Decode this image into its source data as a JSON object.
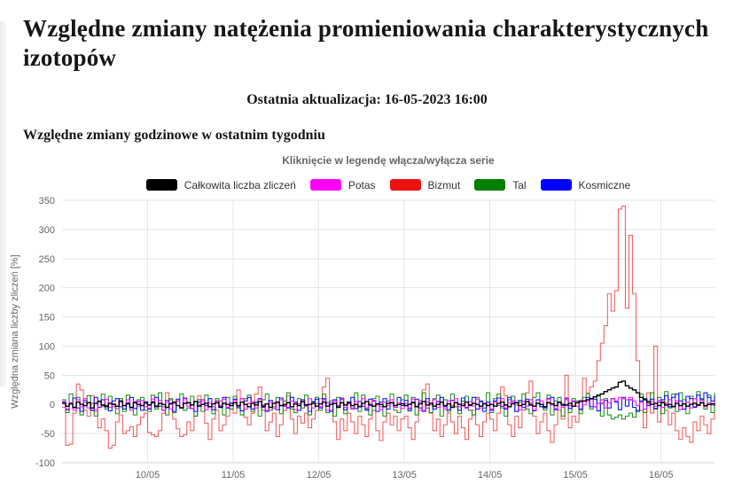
{
  "page": {
    "title": "Względne zmiany natężenia promieniowania charakterystycznych izotopów",
    "last_update": "Ostatnia aktualizacja: 16-05-2023 16:00",
    "section_heading": "Względne zmiany godzinowe w ostatnim tygodniu"
  },
  "chart_data": {
    "type": "line",
    "step": true,
    "title": "Kliknięcie w legendę włącza/wyłącza serie",
    "ylabel": "Względna zmiana liczby zliczeń [%]",
    "ylim": [
      -100,
      350
    ],
    "y_ticks": [
      350,
      300,
      250,
      200,
      150,
      100,
      50,
      0,
      -50,
      -100
    ],
    "x_ticks": [
      "10/05",
      "11/05",
      "12/05",
      "13/05",
      "14/05",
      "15/05",
      "16/05"
    ],
    "x_tick_indices": [
      24,
      48,
      72,
      96,
      120,
      144,
      168
    ],
    "x_start": "09/05 00:00",
    "x_step_hours": 1,
    "grid": true,
    "legend_position": "top",
    "grid_color": "#e6e6e6",
    "axis_line_color": "#d0d0d0",
    "series": [
      {
        "name": "Całkowita liczba zliczeń",
        "slug": "total",
        "color": "#000000",
        "opacity": 1,
        "width": 1.4,
        "values": [
          2,
          -3,
          1,
          -5,
          4,
          0,
          -2,
          3,
          -6,
          2,
          5,
          -1,
          -4,
          2,
          0,
          -3,
          6,
          -2,
          1,
          -5,
          3,
          0,
          -2,
          4,
          -1,
          3,
          -4,
          2,
          0,
          -5,
          1,
          4,
          -2,
          -6,
          2,
          3,
          -1,
          5,
          -3,
          0,
          2,
          -4,
          1,
          3,
          -5,
          2,
          0,
          -2,
          3,
          -2,
          4,
          0,
          -4,
          2,
          -1,
          5,
          -3,
          1,
          -5,
          2,
          4,
          -2,
          0,
          3,
          -4,
          1,
          -2,
          5,
          -1,
          0,
          2,
          -3,
          1,
          4,
          -3,
          0,
          2,
          -5,
          3,
          -1,
          4,
          -2,
          0,
          -4,
          2,
          5,
          -1,
          -3,
          1,
          0,
          -4,
          2,
          3,
          -2,
          0,
          1,
          -2,
          0,
          3,
          -4,
          1,
          5,
          -1,
          2,
          -3,
          0,
          4,
          -2,
          1,
          -5,
          3,
          0,
          -2,
          4,
          -1,
          2,
          0,
          -3,
          1,
          -2,
          0,
          -3,
          2,
          4,
          -1,
          -4,
          1,
          3,
          -2,
          0,
          5,
          -1,
          -3,
          2,
          0,
          -4,
          3,
          1,
          -2,
          4,
          0,
          -1,
          2,
          -3,
          3,
          5,
          6,
          8,
          10,
          13,
          16,
          18,
          22,
          25,
          28,
          30,
          38,
          40,
          32,
          28,
          25,
          20,
          12,
          8,
          4,
          0,
          2,
          -2,
          3,
          -1,
          0,
          -4,
          2,
          -2,
          1,
          -3,
          0,
          2,
          -1,
          3,
          -2,
          0,
          1,
          -2
        ]
      },
      {
        "name": "Potas",
        "slug": "potas",
        "color": "#ff00ff",
        "opacity": 0.9,
        "width": 1.1,
        "values": [
          5,
          -8,
          3,
          -10,
          8,
          -4,
          10,
          -6,
          2,
          -9,
          6,
          -3,
          9,
          -5,
          1,
          -7,
          4,
          -2,
          8,
          -10,
          5,
          -3,
          7,
          -4,
          -6,
          9,
          -2,
          7,
          -10,
          4,
          -8,
          2,
          6,
          -5,
          10,
          -3,
          -7,
          5,
          -1,
          8,
          -9,
          3,
          -4,
          6,
          -2,
          9,
          -5,
          1,
          7,
          -3,
          10,
          -8,
          2,
          5,
          -6,
          9,
          -1,
          -10,
          4,
          -7,
          3,
          8,
          -2,
          -5,
          6,
          -9,
          1,
          4,
          -3,
          10,
          -6,
          2,
          -4,
          8,
          -10,
          3,
          6,
          -2,
          9,
          -5,
          1,
          -8,
          5,
          -3,
          10,
          -6,
          2,
          7,
          -1,
          -9,
          4,
          -2,
          8,
          -5,
          3,
          -7,
          2,
          -6,
          9,
          -3,
          7,
          -10,
          4,
          -1,
          8,
          -5,
          3,
          -8,
          6,
          -2,
          10,
          -4,
          1,
          -7,
          5,
          -3,
          9,
          -6,
          2,
          -1,
          -8,
          4,
          -2,
          10,
          -6,
          3,
          7,
          -1,
          -9,
          5,
          -3,
          8,
          -10,
          2,
          6,
          -4,
          9,
          -1,
          -7,
          3,
          -5,
          10,
          -2,
          6,
          -3,
          7,
          -1,
          5,
          9,
          -4,
          2,
          8,
          -6,
          3,
          10,
          6,
          12,
          10,
          8,
          12,
          6,
          -2,
          4,
          -8,
          1,
          5,
          -3,
          7,
          -5,
          2,
          8,
          -3,
          6,
          -9,
          1,
          4,
          -6,
          10,
          -2,
          7,
          -4,
          3,
          -1,
          5
        ]
      },
      {
        "name": "Bizmut",
        "slug": "bizmut",
        "color": "#ee1111",
        "opacity": 0.65,
        "width": 1.1,
        "values": [
          -5,
          -70,
          -68,
          -15,
          35,
          25,
          -10,
          -20,
          15,
          -12,
          -40,
          -25,
          -45,
          -75,
          -70,
          -30,
          -18,
          -50,
          -45,
          -38,
          -55,
          -35,
          -22,
          -15,
          -48,
          -52,
          -55,
          -45,
          -15,
          20,
          8,
          -25,
          -42,
          -55,
          -52,
          -30,
          -45,
          -20,
          15,
          5,
          -32,
          -60,
          -25,
          -10,
          -45,
          -35,
          -20,
          -8,
          -15,
          25,
          10,
          -22,
          -35,
          -15,
          18,
          30,
          -10,
          -45,
          -30,
          -15,
          -55,
          -35,
          -10,
          15,
          -25,
          -50,
          -20,
          -32,
          -15,
          -40,
          -25,
          -10,
          10,
          30,
          45,
          -10,
          -30,
          -60,
          -25,
          -45,
          -15,
          -30,
          -50,
          -20,
          -35,
          -55,
          -25,
          -10,
          -45,
          -62,
          -30,
          -15,
          -35,
          -20,
          -45,
          -25,
          -20,
          -40,
          -60,
          -30,
          -10,
          25,
          35,
          -15,
          -45,
          -25,
          -55,
          -35,
          -15,
          -30,
          -50,
          -20,
          -40,
          -60,
          -25,
          -10,
          -35,
          -55,
          -30,
          -15,
          -25,
          -45,
          -15,
          30,
          15,
          -35,
          -55,
          -20,
          -40,
          -10,
          20,
          40,
          -20,
          -50,
          -30,
          -15,
          -45,
          -65,
          -35,
          -10,
          -25,
          50,
          -40,
          -20,
          -30,
          -10,
          45,
          20,
          30,
          40,
          75,
          105,
          135,
          190,
          160,
          195,
          335,
          340,
          165,
          290,
          190,
          75,
          -10,
          -40,
          20,
          -15,
          100,
          -30,
          5,
          -10,
          -35,
          -15,
          -45,
          -60,
          -40,
          -55,
          -65,
          -30,
          -45,
          -20,
          -35,
          -50,
          -25,
          -10
        ]
      },
      {
        "name": "Tal",
        "slug": "tal",
        "color": "#008000",
        "opacity": 0.85,
        "width": 1.1,
        "values": [
          8,
          -14,
          18,
          -6,
          12,
          -18,
          4,
          15,
          -10,
          -20,
          6,
          18,
          -8,
          14,
          -4,
          -16,
          10,
          -12,
          16,
          -6,
          -18,
          8,
          12,
          -10,
          -12,
          16,
          -8,
          20,
          -4,
          -18,
          10,
          -14,
          6,
          18,
          -10,
          -6,
          14,
          -20,
          8,
          -12,
          16,
          -4,
          -16,
          10,
          6,
          -18,
          12,
          -8,
          14,
          -6,
          -18,
          10,
          16,
          -12,
          4,
          -20,
          8,
          18,
          -10,
          -4,
          12,
          -16,
          6,
          20,
          -8,
          -14,
          10,
          -6,
          16,
          -18,
          4,
          12,
          -10,
          18,
          -14,
          6,
          -20,
          12,
          8,
          -16,
          4,
          -6,
          20,
          -12,
          16,
          -8,
          -18,
          10,
          14,
          -4,
          -20,
          6,
          18,
          -10,
          -14,
          8,
          16,
          -8,
          12,
          -18,
          4,
          20,
          -6,
          -14,
          10,
          16,
          -20,
          8,
          -12,
          18,
          -4,
          -16,
          6,
          14,
          -10,
          -18,
          12,
          4,
          -6,
          20,
          -14,
          10,
          18,
          -6,
          -20,
          8,
          14,
          -12,
          4,
          18,
          -8,
          -16,
          12,
          20,
          -4,
          -10,
          16,
          -18,
          6,
          12,
          -20,
          8,
          -14,
          10,
          6,
          -16,
          12,
          18,
          -8,
          -4,
          14,
          -20,
          10,
          -18,
          -25,
          -22,
          -18,
          -25,
          -20,
          -15,
          -22,
          -10,
          18,
          -14,
          6,
          20,
          -8,
          12,
          -16,
          22,
          -6,
          18,
          -12,
          20,
          8,
          -16,
          14,
          -4,
          22,
          10,
          -8,
          16,
          -14,
          20
        ]
      },
      {
        "name": "Kosmiczne",
        "slug": "kosmiczne",
        "color": "#0000ff",
        "opacity": 0.9,
        "width": 1.1,
        "values": [
          4,
          -9,
          2,
          11,
          -6,
          -12,
          7,
          3,
          -10,
          12,
          -5,
          8,
          -2,
          -11,
          6,
          10,
          -4,
          -8,
          3,
          12,
          -7,
          5,
          -10,
          2,
          -8,
          5,
          12,
          -3,
          -10,
          7,
          2,
          -12,
          9,
          -5,
          11,
          3,
          -7,
          -12,
          4,
          8,
          -2,
          10,
          -9,
          6,
          -4,
          12,
          -6,
          3,
          9,
          -4,
          -11,
          6,
          12,
          -8,
          3,
          10,
          -5,
          -12,
          7,
          2,
          -9,
          11,
          -3,
          -6,
          12,
          4,
          -10,
          8,
          -2,
          -12,
          5,
          9,
          -6,
          10,
          3,
          -12,
          8,
          -4,
          11,
          -9,
          2,
          12,
          -7,
          5,
          -3,
          -10,
          9,
          6,
          -12,
          4,
          10,
          -8,
          3,
          -5,
          12,
          -2,
          7,
          -11,
          4,
          9,
          -6,
          -12,
          10,
          2,
          -8,
          5,
          12,
          -4,
          -9,
          7,
          3,
          -10,
          11,
          -5,
          -2,
          12,
          -8,
          6,
          -12,
          4,
          -10,
          6,
          11,
          -3,
          -8,
          12,
          4,
          -12,
          7,
          -5,
          9,
          2,
          -11,
          8,
          -4,
          -6,
          10,
          12,
          -9,
          3,
          -2,
          11,
          -7,
          5,
          3,
          -8,
          6,
          12,
          -4,
          9,
          -11,
          2,
          7,
          -6,
          10,
          4,
          -9,
          12,
          -3,
          8,
          -5,
          -12,
          6,
          10,
          -2,
          9,
          -7,
          4,
          8,
          15,
          -4,
          12,
          18,
          6,
          -8,
          14,
          10,
          -5,
          16,
          8,
          20,
          12,
          6,
          15
        ]
      }
    ]
  }
}
